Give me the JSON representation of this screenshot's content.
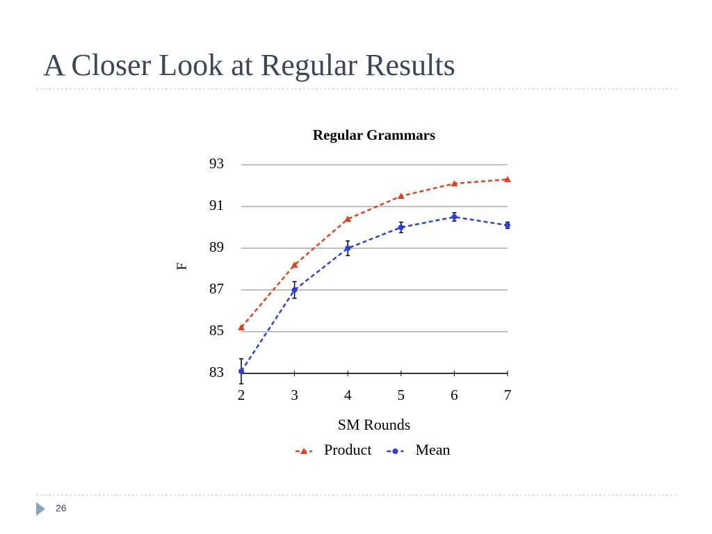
{
  "header": {
    "title": "A Closer Look at Regular Results"
  },
  "footer": {
    "page_number": "26"
  },
  "chart_data": {
    "type": "line",
    "title": "Regular Grammars",
    "xlabel": "SM Rounds",
    "ylabel": "F",
    "x": [
      2,
      3,
      4,
      5,
      6,
      7
    ],
    "series": [
      {
        "name": "Product",
        "color": "#e0401c",
        "marker": "triangle",
        "values": [
          85.2,
          88.2,
          90.4,
          91.5,
          92.1,
          92.3
        ]
      },
      {
        "name": "Mean",
        "color": "#2a3fe0",
        "marker": "circle",
        "values": [
          83.1,
          87.0,
          89.0,
          90.0,
          90.5,
          90.1
        ],
        "errors": [
          0.6,
          0.4,
          0.35,
          0.25,
          0.2,
          0.15
        ]
      }
    ],
    "xlim": [
      2,
      7
    ],
    "xticks": [
      2,
      3,
      4,
      5,
      6,
      7
    ],
    "ylim": [
      83,
      93
    ],
    "yticks": [
      83,
      85,
      87,
      89,
      91,
      93
    ],
    "grid": true,
    "legend": "bottom"
  }
}
